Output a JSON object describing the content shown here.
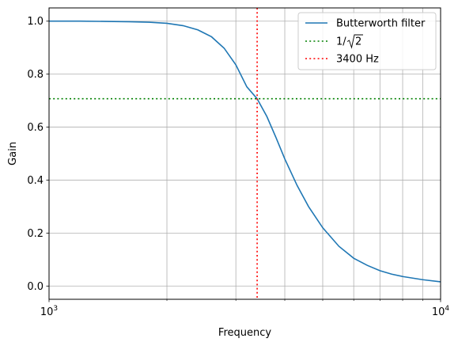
{
  "chart_data": {
    "type": "line",
    "xscale": "log",
    "xlim": [
      1000,
      10000
    ],
    "ylim": [
      -0.05,
      1.05
    ],
    "xlabel": "Frequency",
    "ylabel": "Gain",
    "xticks": [
      {
        "value": 1000,
        "base": "10",
        "exp": "3"
      },
      {
        "value": 10000,
        "base": "10",
        "exp": "4"
      }
    ],
    "yticks": [
      {
        "value": 0.0,
        "label": "0.0"
      },
      {
        "value": 0.2,
        "label": "0.2"
      },
      {
        "value": 0.4,
        "label": "0.4"
      },
      {
        "value": 0.6,
        "label": "0.6"
      },
      {
        "value": 0.8,
        "label": "0.8"
      },
      {
        "value": 1.0,
        "label": "1.0"
      }
    ],
    "grid": "both (major and minor on x)",
    "legend_position": "top-right",
    "series": [
      {
        "name": "Butterworth filter",
        "color": "#1f77b4",
        "style": "solid",
        "x": [
          1000,
          1200,
          1400,
          1600,
          1800,
          2000,
          2200,
          2400,
          2600,
          2800,
          3000,
          3200,
          3400,
          3600,
          3800,
          4000,
          4300,
          4600,
          5000,
          5500,
          6000,
          6500,
          7000,
          7500,
          8000,
          9000,
          10000
        ],
        "y": [
          1.0,
          1.0,
          0.999,
          0.998,
          0.996,
          0.992,
          0.983,
          0.967,
          0.941,
          0.898,
          0.835,
          0.752,
          0.707,
          0.64,
          0.56,
          0.48,
          0.38,
          0.3,
          0.22,
          0.15,
          0.105,
          0.078,
          0.058,
          0.045,
          0.036,
          0.024,
          0.016
        ]
      },
      {
        "name": "1/√2",
        "label_base": "1/",
        "label_root": "2",
        "color": "#008000",
        "style": "dotted",
        "orientation": "horizontal",
        "value": 0.7071
      },
      {
        "name": "3400 Hz",
        "color": "#ff0000",
        "style": "dotted",
        "orientation": "vertical",
        "value": 3400
      }
    ]
  }
}
